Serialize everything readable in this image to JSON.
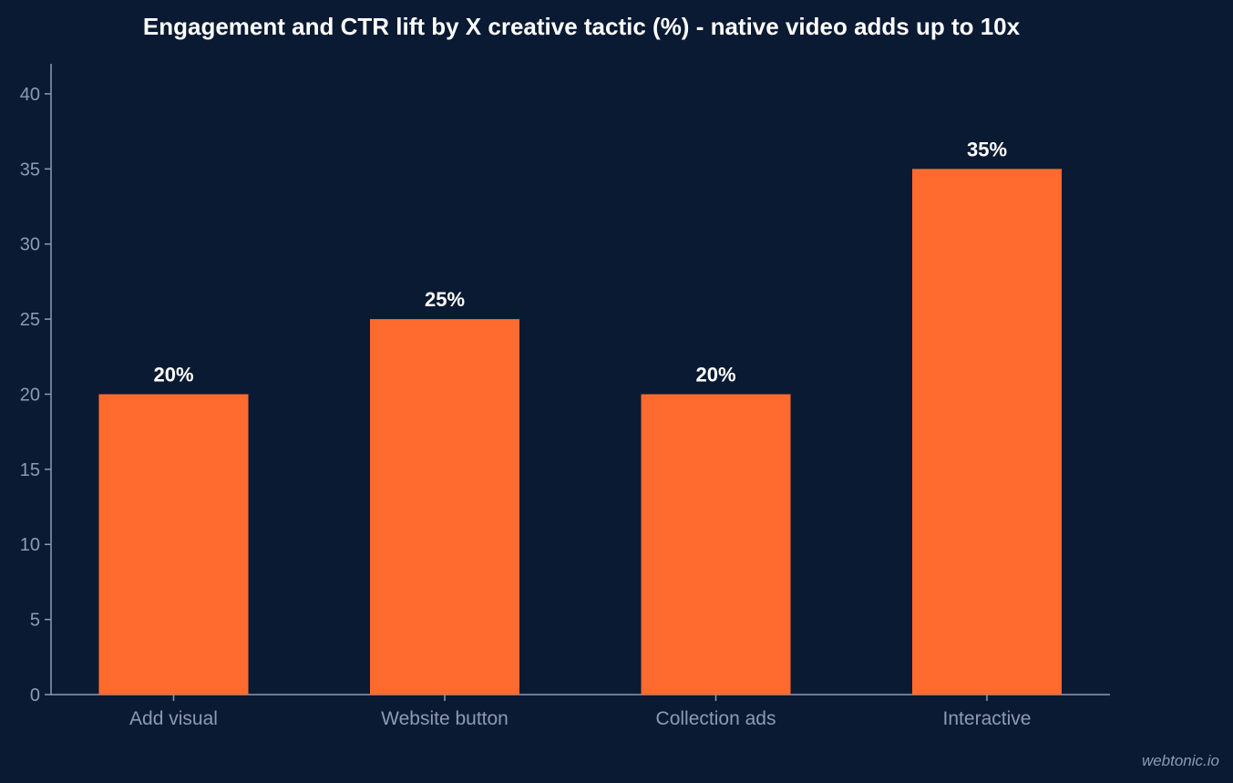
{
  "chart_data": {
    "type": "bar",
    "title": "Engagement and CTR lift by X creative tactic (%) - native video adds up to 10x",
    "xlabel": "",
    "ylabel": "",
    "categories": [
      "Add visual",
      "Website button",
      "Collection ads",
      "Interactive"
    ],
    "values": [
      20,
      25,
      20,
      35
    ],
    "data_labels": [
      "20%",
      "25%",
      "20%",
      "35%"
    ],
    "ylim": [
      0,
      42
    ],
    "yticks": [
      0,
      5,
      10,
      15,
      20,
      25,
      30,
      35,
      40
    ],
    "grid": false,
    "legend": "none"
  },
  "watermark": "webtonic.io",
  "colors": {
    "background": "#0b1a33",
    "bar": "#ff6a2f",
    "axis": "#8e9ab3",
    "tick_text": "#8e9ab3",
    "title_text": "#ffffff",
    "data_label_text": "#ffffff"
  }
}
